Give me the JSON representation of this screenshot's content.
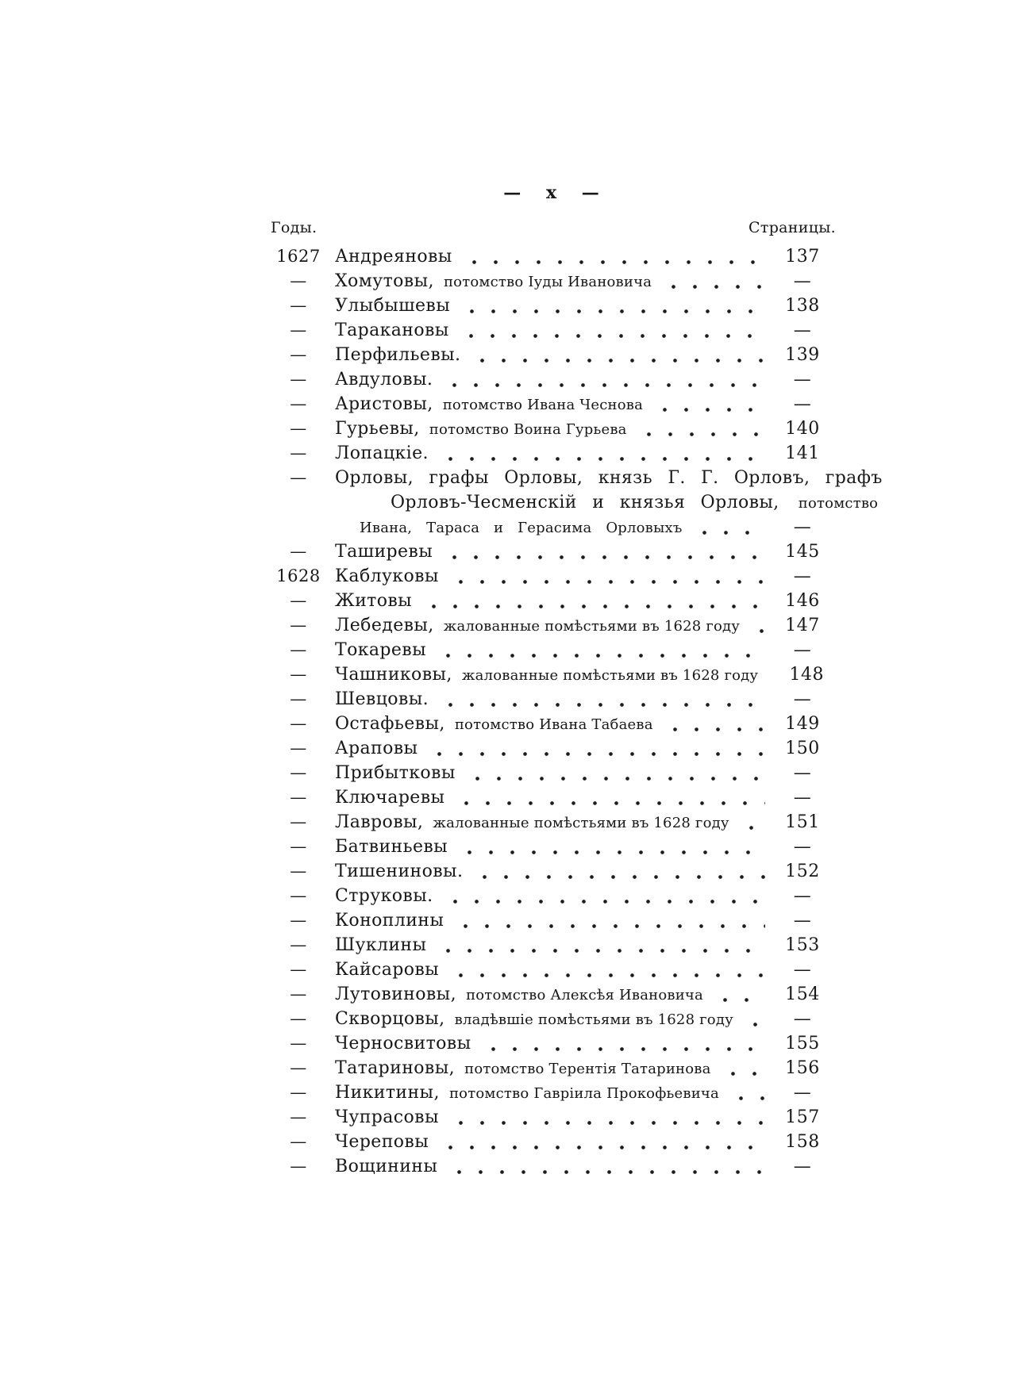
{
  "document": {
    "folio_header": "— x —",
    "columns": {
      "years_label": "Годы.",
      "pages_label": "Страницы."
    },
    "toc_rows": [
      {
        "year": "1627",
        "main": "Андреяновы",
        "desc": "",
        "dots": true,
        "page": "137"
      },
      {
        "year": "—",
        "main": "Хомутовы,",
        "desc": "потомство Іуды Ивановича",
        "dots": true,
        "page": "—"
      },
      {
        "year": "—",
        "main": "Улыбышевы",
        "desc": "",
        "dots": true,
        "page": "138"
      },
      {
        "year": "—",
        "main": "Таракановы",
        "desc": "",
        "dots": true,
        "page": "—"
      },
      {
        "year": "—",
        "main": "Перфильевы.",
        "desc": "",
        "dots": true,
        "page": "139"
      },
      {
        "year": "—",
        "main": "Авдуловы.",
        "desc": "",
        "dots": true,
        "page": "—"
      },
      {
        "year": "—",
        "main": "Аристовы,",
        "desc": "потомство Ивана Чеснова",
        "dots": true,
        "page": "—"
      },
      {
        "year": "—",
        "main": "Гурьевы,",
        "desc": "потомство Воина Гурьева",
        "dots": true,
        "page": "140"
      },
      {
        "year": "—",
        "main": "Лопацкіе.",
        "desc": "",
        "dots": true,
        "page": "141"
      },
      {
        "year": "—",
        "main": "Орловы, графы Орловы, князь Г. Г. Орловъ, графъ",
        "desc": "",
        "dots": false,
        "page": "",
        "spread": true
      },
      {
        "year": "",
        "main": "Орловъ-Чесменскій и князья Орловы,",
        "desc": "потомство",
        "dots": false,
        "page": "",
        "indent": 2,
        "spread": true
      },
      {
        "year": "",
        "main": "",
        "desc": "Ивана, Тараса и Герасима Орловыхъ",
        "dots": true,
        "page": "—",
        "indent": 1,
        "spread": true
      },
      {
        "year": "—",
        "main": "Таширевы",
        "desc": "",
        "dots": true,
        "page": "145"
      },
      {
        "year": "1628",
        "main": "Каблуковы",
        "desc": "",
        "dots": true,
        "page": "—"
      },
      {
        "year": "—",
        "main": "Житовы",
        "desc": "",
        "dots": true,
        "page": "146"
      },
      {
        "year": "—",
        "main": "Лебедевы,",
        "desc": "жалованные помѣстьями въ 1628 году",
        "dots": true,
        "page": "147"
      },
      {
        "year": "—",
        "main": "Токаревы",
        "desc": "",
        "dots": true,
        "page": "—"
      },
      {
        "year": "—",
        "main": "Чашниковы,",
        "desc": "жалованные помѣстьями въ 1628 году",
        "dots": true,
        "page": "148"
      },
      {
        "year": "—",
        "main": "Шевцовы.",
        "desc": "",
        "dots": true,
        "page": "—"
      },
      {
        "year": "—",
        "main": "Остафьевы,",
        "desc": "потомство Ивана Табаева",
        "dots": true,
        "page": "149"
      },
      {
        "year": "—",
        "main": "Араповы",
        "desc": "",
        "dots": true,
        "page": "150"
      },
      {
        "year": "—",
        "main": "Прибытковы",
        "desc": "",
        "dots": true,
        "page": "—"
      },
      {
        "year": "—",
        "main": "Ключаревы",
        "desc": "",
        "dots": true,
        "page": "—"
      },
      {
        "year": "—",
        "main": "Лавровы,",
        "desc": "жалованные помѣстьями въ 1628 году",
        "dots": true,
        "page": "151"
      },
      {
        "year": "—",
        "main": "Батвиньевы",
        "desc": "",
        "dots": true,
        "page": "—"
      },
      {
        "year": "—",
        "main": "Тишениновы.",
        "desc": "",
        "dots": true,
        "page": "152"
      },
      {
        "year": "—",
        "main": "Струковы.",
        "desc": "",
        "dots": true,
        "page": "—"
      },
      {
        "year": "—",
        "main": "Коноплины",
        "desc": "",
        "dots": true,
        "page": "—"
      },
      {
        "year": "—",
        "main": "Шуклины",
        "desc": "",
        "dots": true,
        "page": "153"
      },
      {
        "year": "—",
        "main": "Кайсаровы",
        "desc": "",
        "dots": true,
        "page": "—"
      },
      {
        "year": "—",
        "main": "Лутовиновы,",
        "desc": "потомство Алексѣя Ивановича",
        "dots": true,
        "page": "154"
      },
      {
        "year": "—",
        "main": "Скворцовы,",
        "desc": "владѣвшіе помѣстьями въ 1628 году",
        "dots": true,
        "page": "—"
      },
      {
        "year": "—",
        "main": "Черносвитовы",
        "desc": "",
        "dots": true,
        "page": "155"
      },
      {
        "year": "—",
        "main": "Татариновы,",
        "desc": "потомство Терентія Татаринова",
        "dots": true,
        "page": "156"
      },
      {
        "year": "—",
        "main": "Никитины,",
        "desc": "потомство Гавріила Прокофьевича",
        "dots": true,
        "page": "—"
      },
      {
        "year": "—",
        "main": "Чупрасовы",
        "desc": "",
        "dots": true,
        "page": "157"
      },
      {
        "year": "—",
        "main": "Череповы",
        "desc": "",
        "dots": true,
        "page": "158"
      },
      {
        "year": "—",
        "main": "Вощинины",
        "desc": "",
        "dots": true,
        "page": "—"
      }
    ]
  }
}
